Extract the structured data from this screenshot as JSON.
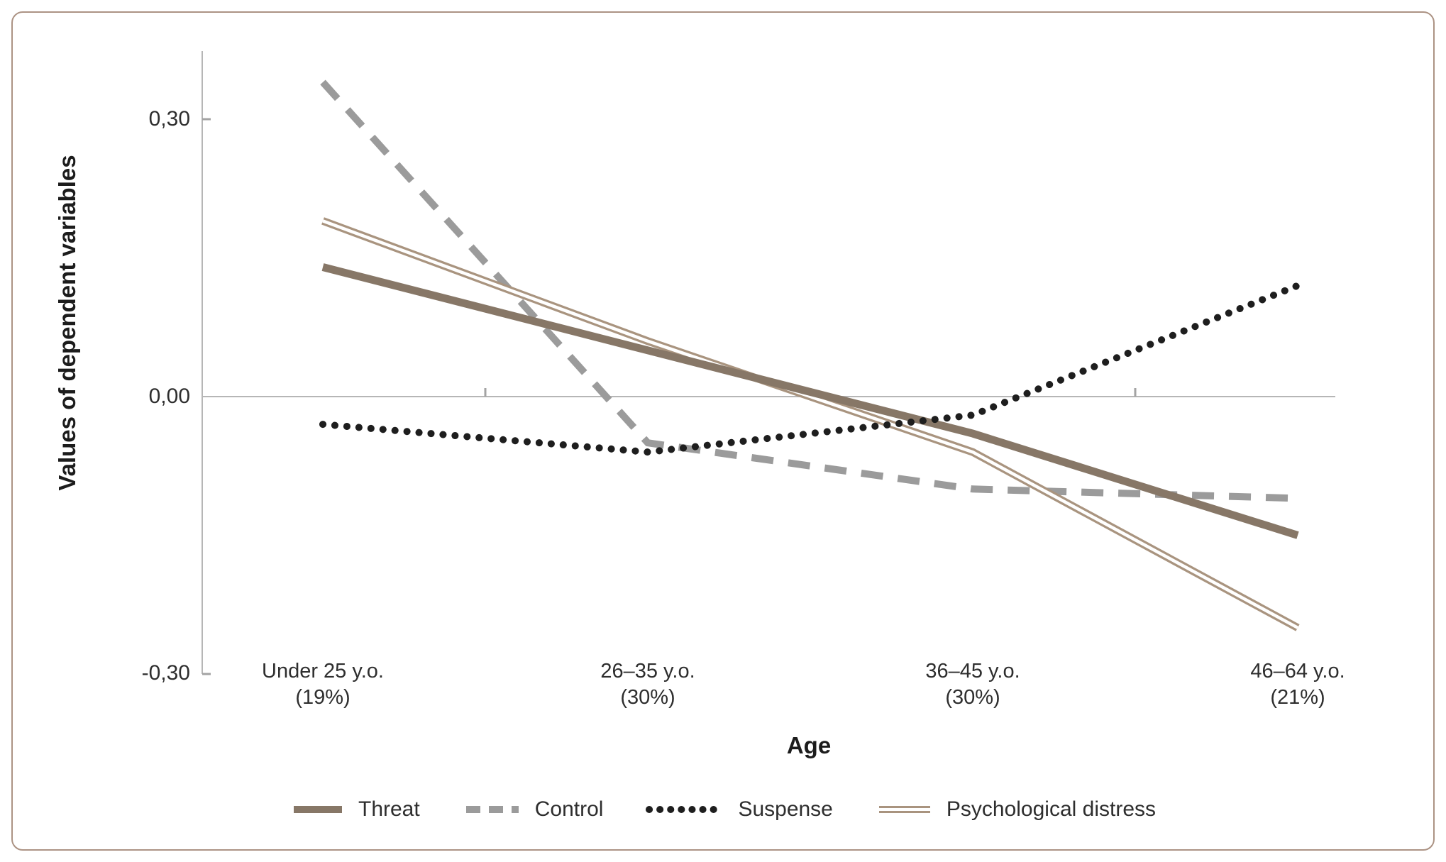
{
  "figure": {
    "background": "#ffffff",
    "border_color": "#ac9384"
  },
  "chart_data": {
    "type": "line",
    "title": "",
    "xlabel": "Age",
    "ylabel": "Values of dependent variables",
    "categories": [
      "Under 25 y.o.",
      "26–35 y.o.",
      "36–45 y.o.",
      "46–64 y.o."
    ],
    "category_sublabels": [
      "(19%)",
      "(30%)",
      "(30%)",
      "(21%)"
    ],
    "y_ticks": [
      "0,30",
      "0,00",
      "-0,30"
    ],
    "y_tick_values": [
      0.3,
      0.0,
      -0.3
    ],
    "ylim": [
      -0.3,
      0.37
    ],
    "grid": "zero-line-only",
    "legend_position": "bottom",
    "series": [
      {
        "name": "Threat",
        "style": "solid-thick",
        "color": "#877767",
        "values": [
          0.14,
          0.05,
          -0.04,
          -0.15
        ]
      },
      {
        "name": "Control",
        "style": "dashed",
        "color": "#9b9b9b",
        "values": [
          0.34,
          -0.05,
          -0.1,
          -0.11
        ]
      },
      {
        "name": "Suspense",
        "style": "dotted",
        "color": "#1e1e1e",
        "values": [
          -0.03,
          -0.06,
          -0.02,
          0.12
        ]
      },
      {
        "name": "Psychological distress",
        "style": "double-line",
        "color": "#a9947f",
        "values": [
          0.19,
          0.06,
          -0.06,
          -0.25
        ]
      }
    ]
  }
}
